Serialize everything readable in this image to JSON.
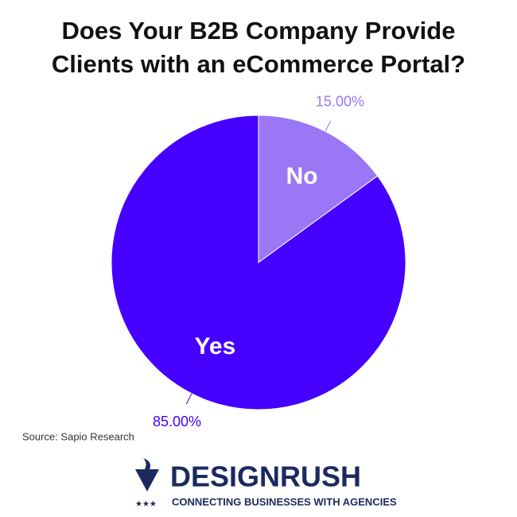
{
  "chart_data": {
    "type": "pie",
    "title": "Does Your B2B Company Provide Clients with an eCommerce Portal?",
    "categories": [
      "No",
      "Yes"
    ],
    "values": [
      15,
      85
    ],
    "value_labels": [
      "15.00%",
      "85.00%"
    ],
    "colors": [
      "#9b77f6",
      "#4600ff"
    ],
    "source": "Source: Sapio Research"
  },
  "logo": {
    "name": "DESIGNRUSH",
    "tagline": "CONNECTING BUSINESSES WITH AGENCIES"
  }
}
